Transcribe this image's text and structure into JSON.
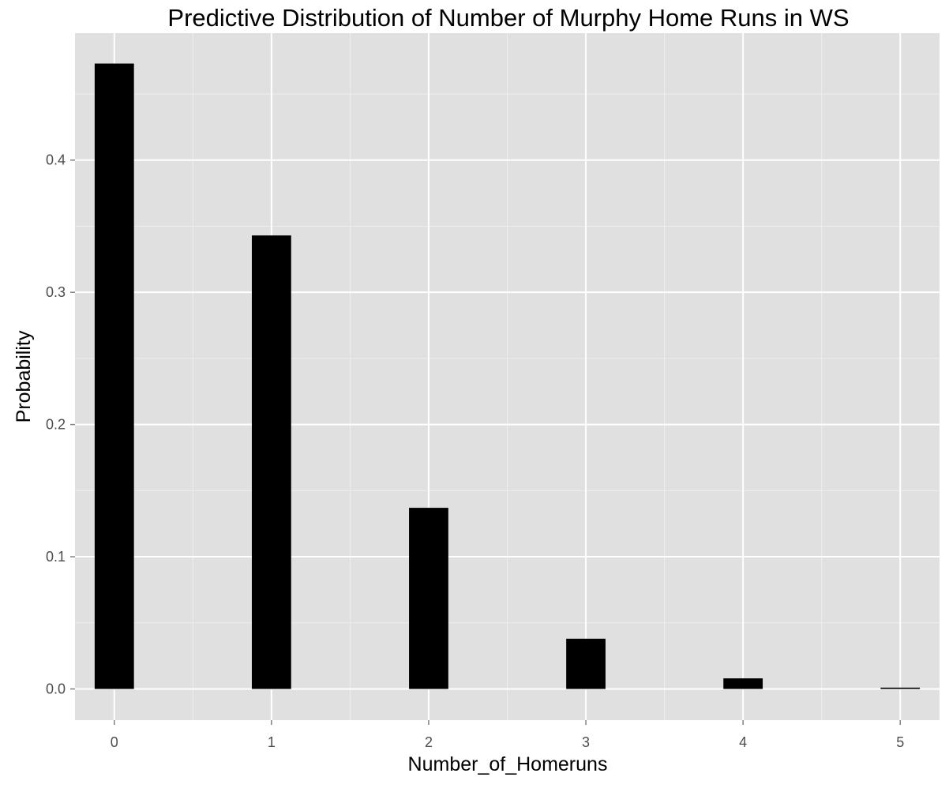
{
  "chart_data": {
    "type": "bar",
    "title": "Predictive Distribution of Number of Murphy Home Runs in WS",
    "xlabel": "Number_of_Homeruns",
    "ylabel": "Probability",
    "categories": [
      "0",
      "1",
      "2",
      "3",
      "4",
      "5"
    ],
    "x": [
      0,
      1,
      2,
      3,
      4,
      5
    ],
    "values": [
      0.473,
      0.343,
      0.137,
      0.038,
      0.008,
      0.001
    ],
    "xlim": [
      -0.25,
      5.25
    ],
    "ylim": [
      -0.0236,
      0.496
    ],
    "y_ticks": [
      0.0,
      0.1,
      0.2,
      0.3,
      0.4
    ],
    "y_tick_labels": [
      "0.0",
      "0.1",
      "0.2",
      "0.3",
      "0.4"
    ],
    "x_tick_labels": [
      "0",
      "1",
      "2",
      "3",
      "4",
      "5"
    ],
    "bar_width_data_units": 0.25,
    "grid": true,
    "legend": "none",
    "colors": {
      "panel_background": "#e0e0e0",
      "grid_major": "#ffffff",
      "grid_minor": "#eeeeee",
      "bar_fill": "#000000",
      "tick_label": "#4d4d4d",
      "tick_mark": "#7f7f7f"
    }
  }
}
